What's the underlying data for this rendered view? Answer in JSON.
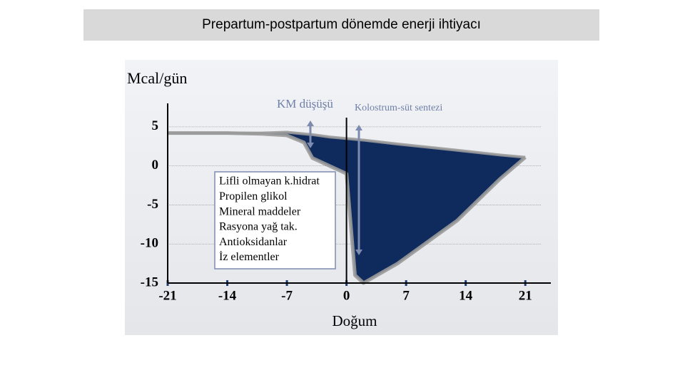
{
  "header": {
    "title": "Prepartum-postpartum dönemde enerji ihtiyacı"
  },
  "chart_data": {
    "type": "area-gap",
    "y_label": "Mcal/gün",
    "x_label": "Doğum",
    "x": [
      -21,
      -14,
      -10,
      -7,
      -5,
      -4,
      -2,
      0,
      1,
      2,
      6,
      13,
      18,
      21
    ],
    "series": [
      {
        "color": "#9a9a9a",
        "values": [
          4.2,
          4.2,
          4.2,
          4.3,
          4.1,
          4,
          3.7,
          3.5,
          3.4,
          3.3,
          2.8,
          2,
          1.4,
          1.1
        ]
      },
      {
        "color": "#9a9a9a",
        "values": [
          4.2,
          4.2,
          4.1,
          3.9,
          3,
          1,
          0,
          -1,
          -14,
          -15,
          -12.5,
          -7,
          -1.7,
          1.1
        ]
      }
    ],
    "fill_color": "#0f2a5c",
    "xlim": [
      -21,
      24
    ],
    "ylim": [
      -15,
      8
    ],
    "xticks": [
      -21,
      -14,
      -7,
      0,
      7,
      14,
      21
    ],
    "yticks": [
      5,
      0,
      -5,
      -10,
      -15
    ],
    "grid": true,
    "annotations": [
      "KM düşüşü",
      "Kolostrum-süt sentezi"
    ],
    "box_items": [
      "Lifli olmayan k.hidrat",
      "Propilen glikol",
      "Mineral maddeler",
      "Rasyona yağ tak.",
      "Antioksidanlar",
      "İz elementler"
    ]
  }
}
